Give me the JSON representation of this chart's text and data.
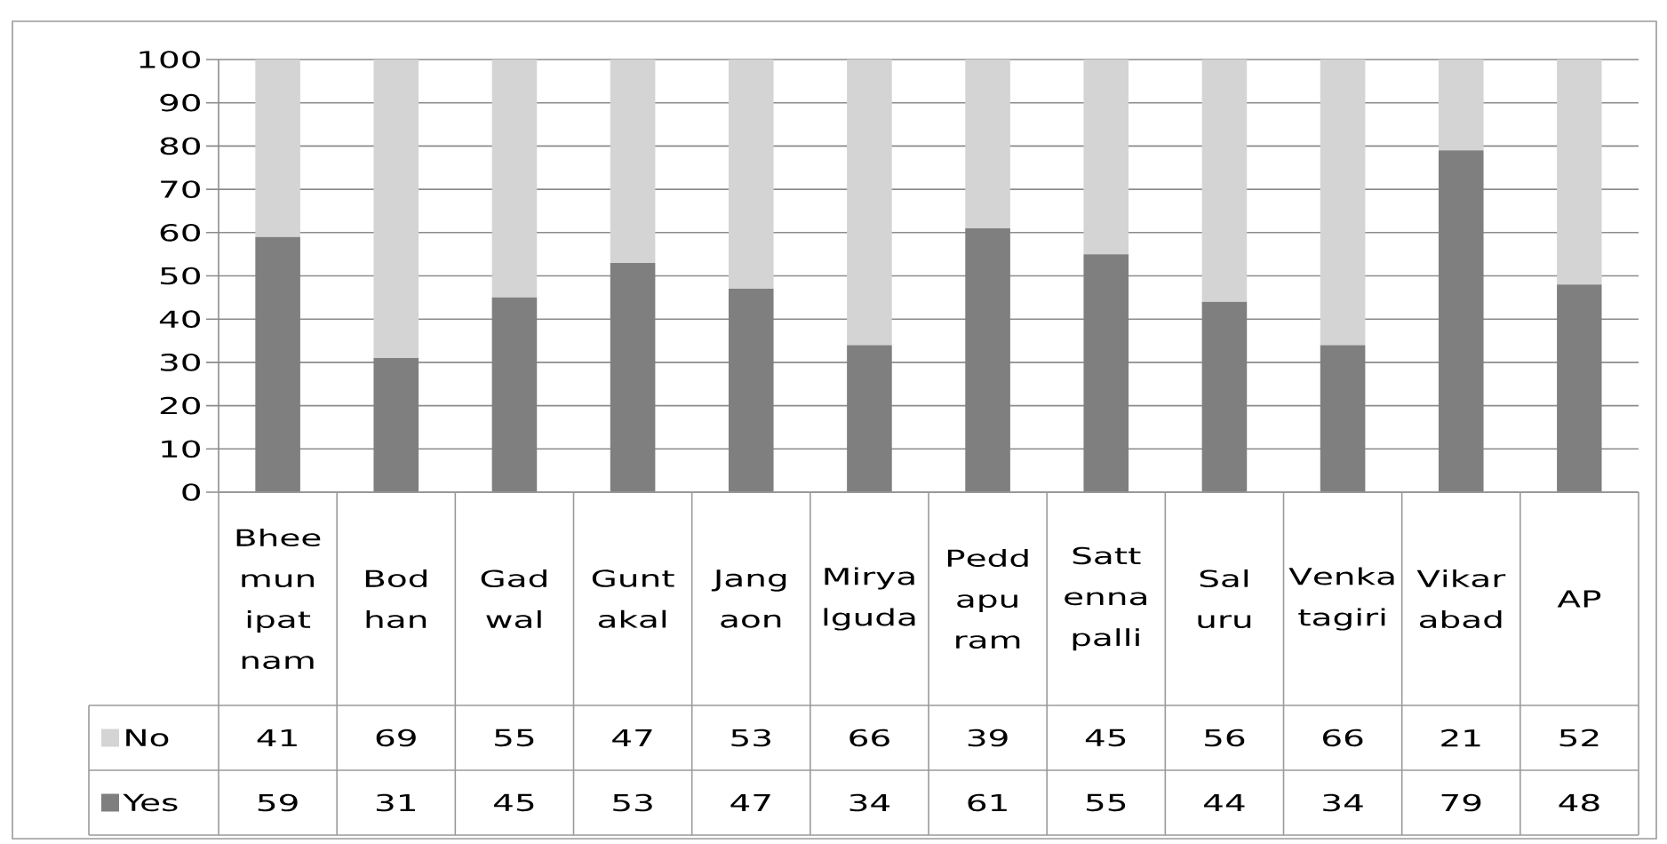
{
  "chart_data": {
    "type": "bar",
    "stacked": true,
    "categories": [
      "Bheemunipatnam",
      "Bodhan",
      "Gadwal",
      "Guntakal",
      "Jangaon",
      "Miryalguda",
      "Peddapuram",
      "Sattennapalli",
      "Saluru",
      "Venkatagiri",
      "Vikarabad",
      "AP"
    ],
    "series": [
      {
        "name": "Yes",
        "color": "#7f7f7f",
        "values": [
          59,
          31,
          45,
          53,
          47,
          34,
          61,
          55,
          44,
          34,
          79,
          48
        ]
      },
      {
        "name": "No",
        "color": "#d4d4d4",
        "values": [
          41,
          69,
          55,
          47,
          53,
          66,
          39,
          45,
          56,
          66,
          21,
          52
        ]
      }
    ],
    "ylim": [
      0,
      100
    ],
    "yticks": [
      0,
      10,
      20,
      30,
      40,
      50,
      60,
      70,
      80,
      90,
      100
    ],
    "grid": "y",
    "legend": "bottom left",
    "data_labels": true
  }
}
